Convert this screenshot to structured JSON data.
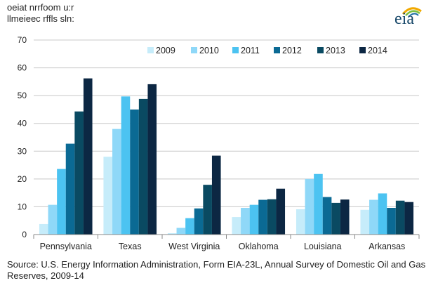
{
  "title": {
    "line1": "oeiat nrrfoom u:r",
    "line2": "llmeieec rffls sln:"
  },
  "logo": {
    "text": "eia",
    "icon": "eia-logo-icon"
  },
  "source": "Source: U.S. Energy Information Administration, Form EIA-23L, Annual Survey of Domestic Oil and Gas Reserves, 2009-14",
  "colors": {
    "2009": "#c6ecfa",
    "2010": "#8fd8f8",
    "2011": "#4cc3f1",
    "2012": "#0b6a94",
    "2013": "#0a4a62",
    "2014": "#0c2743"
  },
  "chart_data": {
    "type": "bar",
    "categories": [
      "Pennsylvania",
      "Texas",
      "West Virginia",
      "Oklahoma",
      "Louisiana",
      "Arkansas"
    ],
    "series": [
      {
        "name": "2009",
        "values": [
          3.8,
          28.0,
          0.5,
          6.3,
          9.1,
          8.9
        ]
      },
      {
        "name": "2010",
        "values": [
          10.7,
          38.0,
          2.4,
          9.6,
          20.0,
          12.5
        ]
      },
      {
        "name": "2011",
        "values": [
          23.6,
          49.7,
          5.9,
          10.7,
          21.8,
          14.8
        ]
      },
      {
        "name": "2012",
        "values": [
          32.7,
          45.0,
          9.4,
          12.5,
          13.5,
          9.6
        ]
      },
      {
        "name": "2013",
        "values": [
          44.3,
          48.8,
          17.9,
          12.7,
          11.4,
          12.2
        ]
      },
      {
        "name": "2014",
        "values": [
          56.2,
          54.1,
          28.4,
          16.5,
          12.6,
          11.7
        ]
      }
    ],
    "ylim": [
      0,
      70
    ],
    "yticks": [
      0,
      10,
      20,
      30,
      40,
      50,
      60,
      70
    ],
    "grid": true,
    "legend_position": "top-right"
  }
}
